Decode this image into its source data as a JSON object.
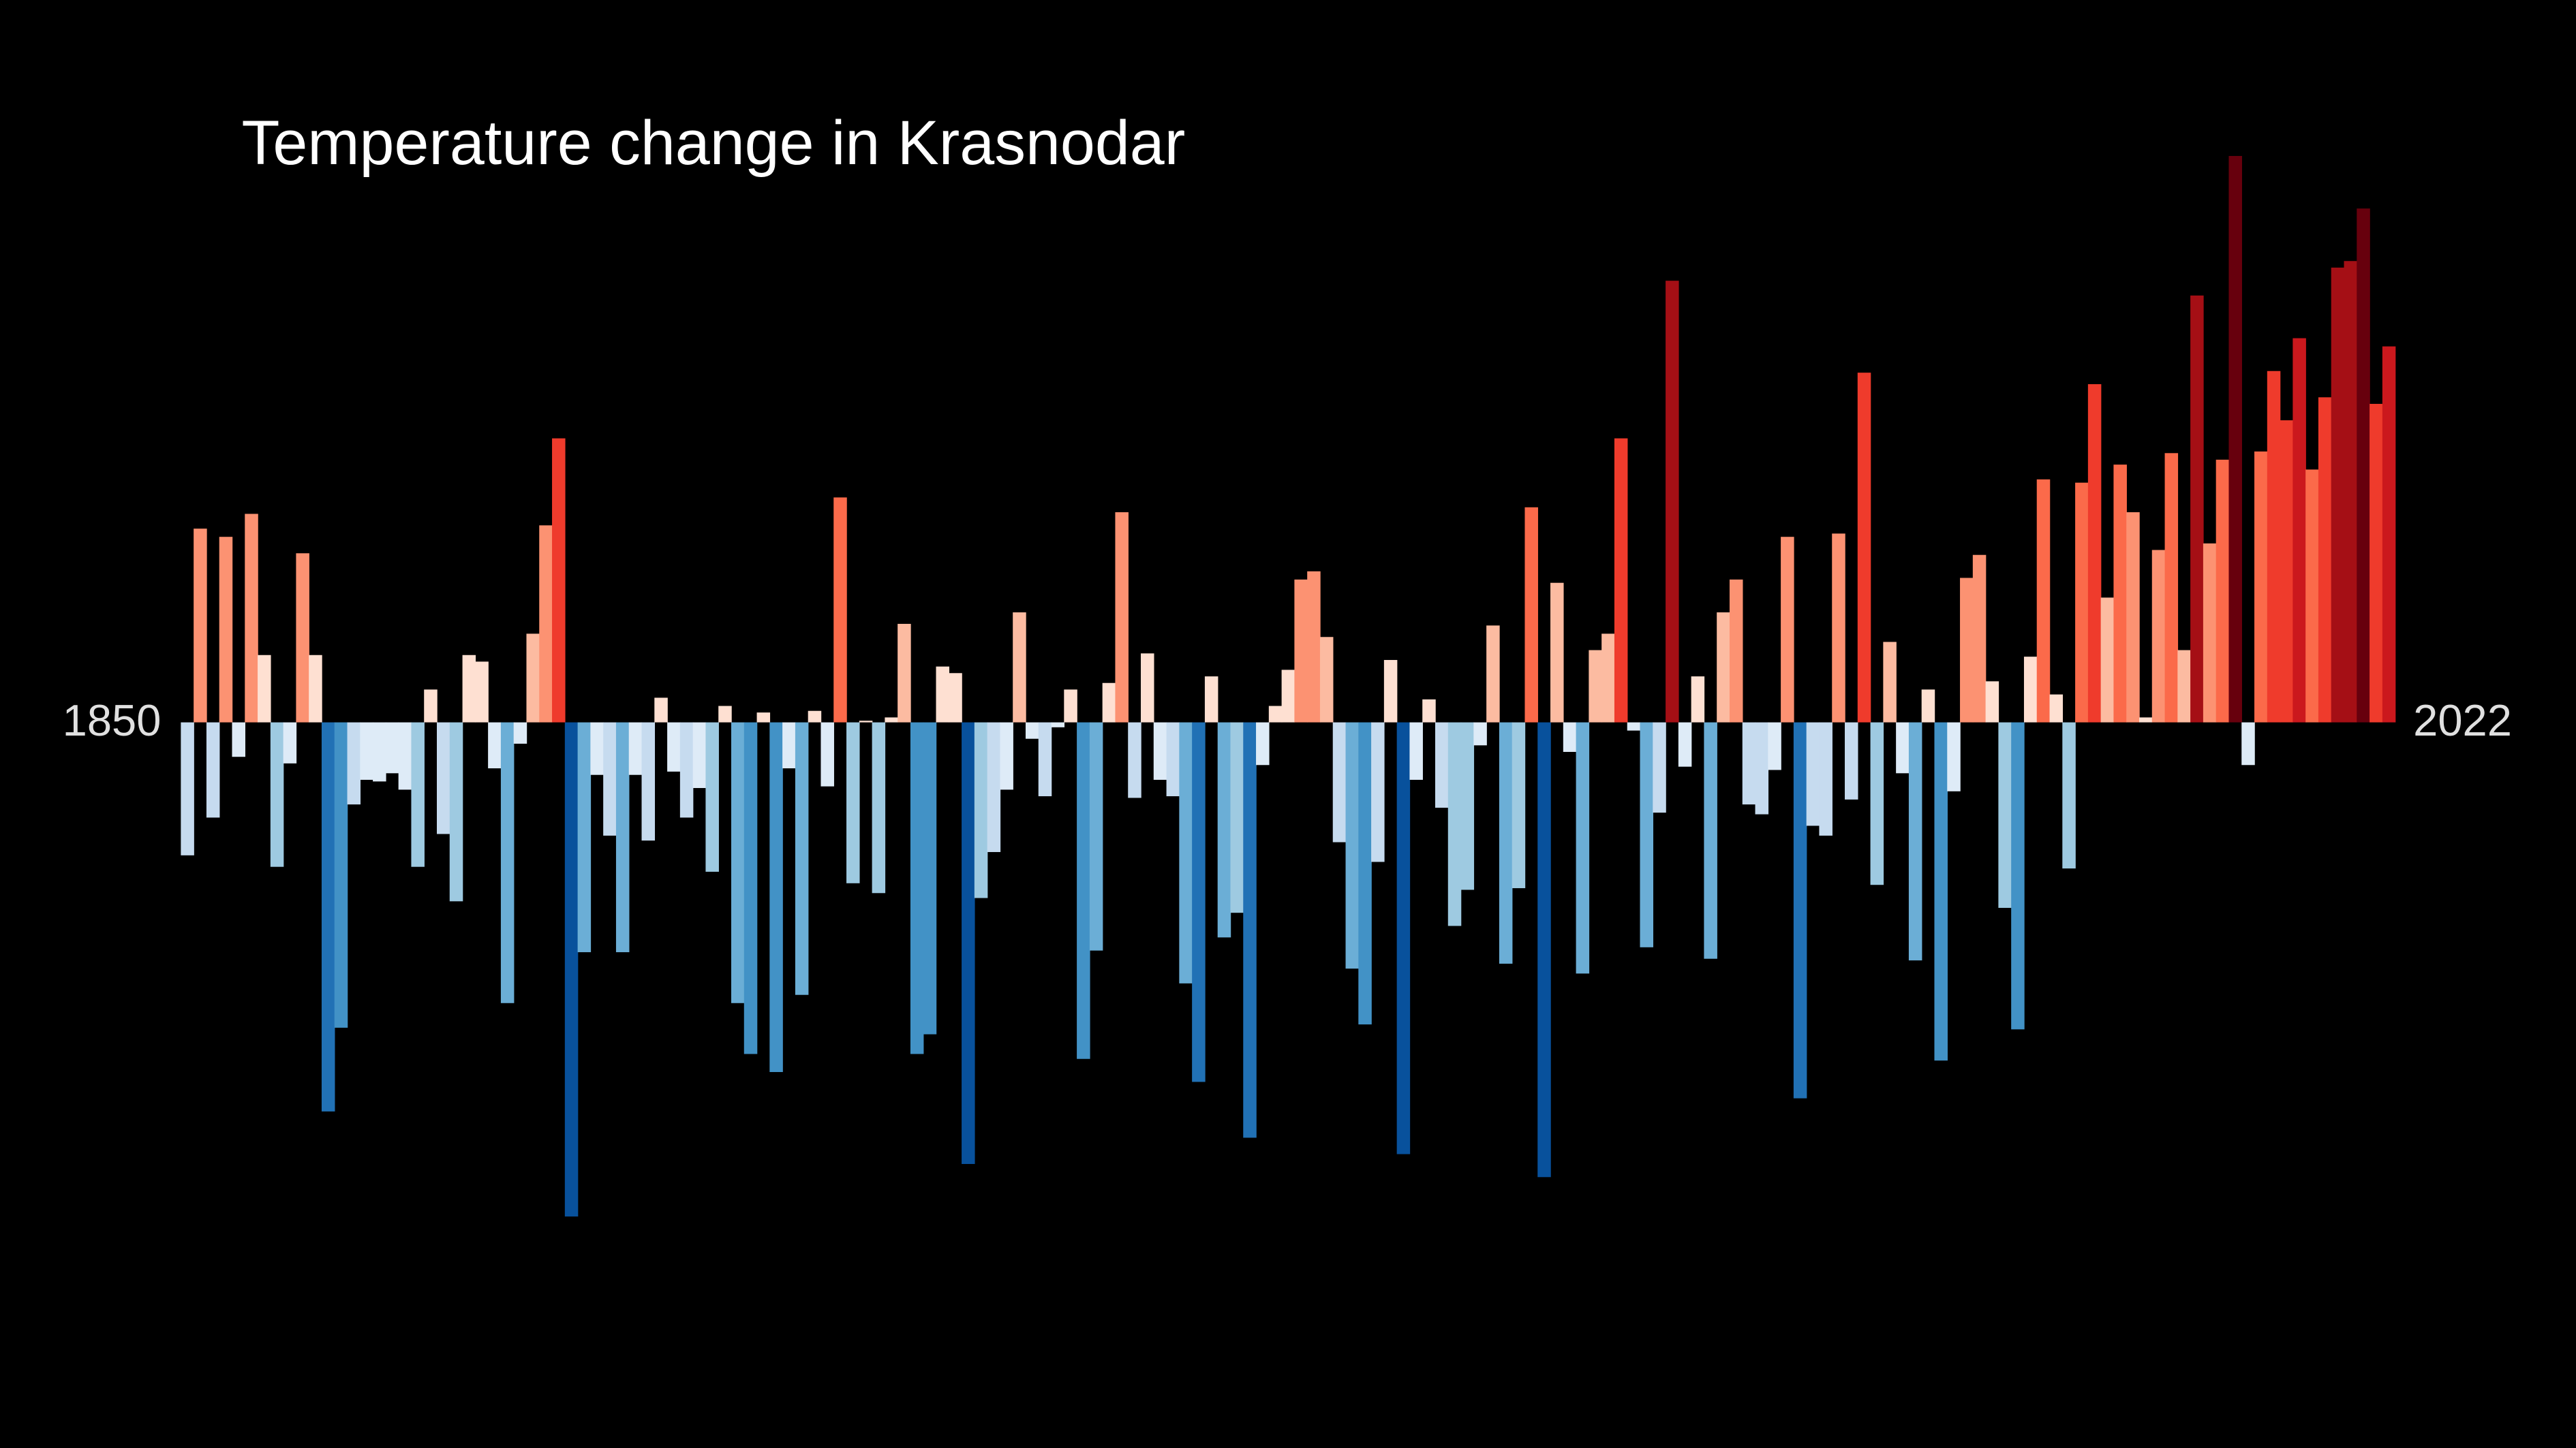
{
  "chart_data": {
    "type": "bar",
    "title": "Temperature change in Krasnodar",
    "xlim": [
      1850,
      2022
    ],
    "colormap": [
      "#08306b",
      "#08519c",
      "#2171b5",
      "#4292c6",
      "#6baed6",
      "#9ecae1",
      "#c6dbef",
      "#deebf7",
      "#fee0d2",
      "#fcbba1",
      "#fc9272",
      "#fb6a4a",
      "#ef3b2c",
      "#cb181d",
      "#a50f15",
      "#67000d"
    ],
    "values": [
      -0.81,
      1.18,
      -0.58,
      1.13,
      -0.21,
      1.27,
      0.41,
      -0.88,
      -0.25,
      1.03,
      0.41,
      -2.37,
      -1.86,
      -0.5,
      -0.35,
      -0.36,
      -0.31,
      -0.41,
      -0.88,
      0.2,
      -0.68,
      -1.09,
      0.41,
      0.37,
      -0.28,
      -1.71,
      -0.13,
      0.54,
      1.2,
      1.73,
      -3.01,
      -1.4,
      -0.32,
      -0.69,
      -1.4,
      -0.32,
      -0.72,
      0.15,
      -0.3,
      -0.58,
      -0.4,
      -0.91,
      0.1,
      -1.71,
      -2.02,
      0.06,
      -2.13,
      -0.28,
      -1.66,
      0.07,
      -0.39,
      1.37,
      -0.98,
      0.01,
      -1.04,
      0.03,
      0.6,
      -2.02,
      -1.9,
      0.34,
      0.3,
      -2.69,
      -1.07,
      -0.79,
      -0.41,
      0.67,
      -0.1,
      -0.45,
      -0.03,
      0.2,
      -2.05,
      -1.39,
      0.24,
      1.28,
      -0.46,
      0.42,
      -0.35,
      -0.45,
      -1.59,
      -2.19,
      0.28,
      -1.31,
      -1.16,
      -2.53,
      -0.26,
      0.1,
      0.32,
      0.87,
      0.92,
      0.52,
      -0.73,
      -1.5,
      -1.84,
      -0.85,
      0.38,
      -2.63,
      -0.35,
      0.14,
      -0.52,
      -1.24,
      -1.02,
      -0.14,
      0.59,
      -1.47,
      -1.01,
      1.31,
      -2.77,
      0.85,
      -0.18,
      -1.53,
      0.44,
      0.54,
      1.73,
      -0.05,
      -1.37,
      -0.55,
      2.69,
      -0.27,
      0.28,
      -1.44,
      0.67,
      0.87,
      -0.5,
      -0.56,
      -0.29,
      1.13,
      -2.29,
      -0.63,
      -0.69,
      1.15,
      -0.47,
      2.13,
      -0.99,
      0.49,
      -0.31,
      -1.45,
      0.2,
      -2.06,
      -0.42,
      0.88,
      1.02,
      0.25,
      -1.13,
      -1.87,
      0.4,
      1.48,
      0.17,
      -0.89,
      1.46,
      2.06,
      0.76,
      1.57,
      1.28,
      0.03,
      1.05,
      1.64,
      0.44,
      2.6,
      1.09,
      1.6,
      3.45,
      -0.26,
      1.65,
      2.14,
      1.84,
      2.34,
      1.54,
      1.98,
      2.77,
      2.81,
      3.13,
      1.94,
      2.29
    ]
  }
}
